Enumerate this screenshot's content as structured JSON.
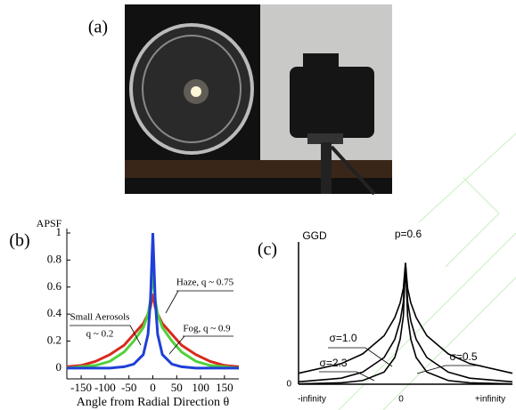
{
  "panel_labels": [
    "(a)",
    "(b)",
    "(c)"
  ],
  "chart_data": [
    {
      "type": "line",
      "ylabel": "APSF",
      "xlabel": "Angle from Radial Direction θ",
      "x": [
        -180,
        -150,
        -120,
        -90,
        -60,
        -40,
        -20,
        -10,
        -5,
        0,
        5,
        10,
        20,
        40,
        60,
        90,
        120,
        150,
        180
      ],
      "series": [
        {
          "color": "#d62a1e",
          "values": [
            0.01,
            0.02,
            0.05,
            0.1,
            0.17,
            0.25,
            0.33,
            0.4,
            0.45,
            0.55,
            0.45,
            0.4,
            0.33,
            0.25,
            0.17,
            0.1,
            0.05,
            0.02,
            0.01
          ]
        },
        {
          "color": "#4fd13a",
          "values": [
            0,
            0.01,
            0.02,
            0.05,
            0.12,
            0.2,
            0.3,
            0.4,
            0.5,
            0.72,
            0.5,
            0.4,
            0.3,
            0.2,
            0.12,
            0.05,
            0.02,
            0.01,
            0
          ]
        },
        {
          "color": "#1f3fd8",
          "values": [
            0,
            0,
            0,
            0,
            0.01,
            0.03,
            0.1,
            0.25,
            0.5,
            1,
            0.5,
            0.25,
            0.1,
            0.03,
            0.01,
            0,
            0,
            0,
            0
          ]
        }
      ],
      "annotations": [
        "Haze, q ~ 0.75",
        "Fog, q ~ 0.9",
        "Small Aerosols",
        "q ~ 0.2"
      ],
      "xlim": [
        -180,
        180
      ],
      "xticks": [
        -150,
        -100,
        -50,
        0,
        50,
        100,
        150
      ],
      "ylim": [
        -0.04,
        1
      ],
      "yticks": [
        0,
        0.2,
        0.4,
        0.6,
        0.8,
        1
      ]
    },
    {
      "type": "line",
      "ylabel": "GGD",
      "x_labels": [
        "-infinity",
        "0",
        "+infinity"
      ],
      "y_origin_label": "0",
      "x": [
        -10,
        -6,
        -4,
        -2,
        -1,
        -0.5,
        -0.2,
        0,
        0.2,
        0.5,
        1,
        2,
        4,
        6,
        10
      ],
      "series": [
        {
          "color": "#000000",
          "values": [
            0.002,
            0.012,
            0.03,
            0.1,
            0.22,
            0.37,
            0.56,
            1,
            0.56,
            0.37,
            0.22,
            0.1,
            0.03,
            0.012,
            0.002
          ]
        },
        {
          "color": "#000000",
          "values": [
            0.02,
            0.05,
            0.1,
            0.22,
            0.37,
            0.52,
            0.68,
            1,
            0.68,
            0.52,
            0.37,
            0.22,
            0.1,
            0.05,
            0.02
          ]
        },
        {
          "color": "#000000",
          "values": [
            0.09,
            0.17,
            0.25,
            0.4,
            0.55,
            0.67,
            0.79,
            1,
            0.79,
            0.67,
            0.55,
            0.4,
            0.25,
            0.17,
            0.09
          ]
        }
      ],
      "annotations": [
        "p=0.6",
        "σ=1.0",
        "σ=2.3",
        "σ=0.5"
      ],
      "xlim": [
        -10,
        10
      ],
      "ylim": [
        0,
        1.1
      ]
    }
  ]
}
